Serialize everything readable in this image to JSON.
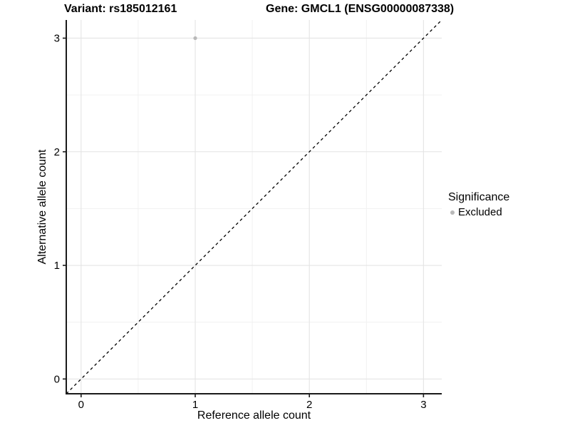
{
  "chart_data": {
    "type": "scatter",
    "title_left": "Variant: rs185012161",
    "title_right": "Gene: GMCL1 (ENSG00000087338)",
    "xlabel": "Reference allele count",
    "ylabel": "Alternative allele count",
    "xlim": [
      -0.13,
      3.16
    ],
    "ylim": [
      -0.13,
      3.16
    ],
    "xticks": [
      0,
      1,
      2,
      3
    ],
    "yticks": [
      0,
      1,
      2,
      3
    ],
    "minor_gridlines_x": [
      0.5,
      1.5,
      2.5
    ],
    "minor_gridlines_y": [
      0.5,
      1.5,
      2.5
    ],
    "grid": true,
    "points": [
      {
        "x": 1,
        "y": 3,
        "significance": "Excluded"
      }
    ],
    "reference_line": {
      "type": "identity",
      "style": "dashed",
      "color": "#000000"
    },
    "legend": {
      "title": "Significance",
      "position": "right",
      "items": [
        {
          "label": "Excluded",
          "color": "#b9b9b9"
        }
      ]
    },
    "colors": {
      "point": "#b9b9b9",
      "grid_major": "#e4e4e4",
      "grid_minor": "#f1f1f1",
      "axis_line": "#1a1a1a",
      "tick_label": "#000000"
    }
  }
}
